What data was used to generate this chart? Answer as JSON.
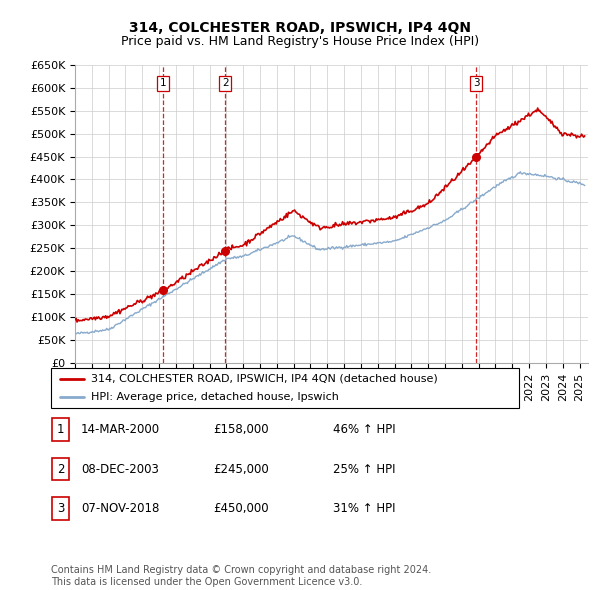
{
  "title": "314, COLCHESTER ROAD, IPSWICH, IP4 4QN",
  "subtitle": "Price paid vs. HM Land Registry's House Price Index (HPI)",
  "ylim": [
    0,
    650000
  ],
  "yticks": [
    0,
    50000,
    100000,
    150000,
    200000,
    250000,
    300000,
    350000,
    400000,
    450000,
    500000,
    550000,
    600000,
    650000
  ],
  "ytick_labels": [
    "£0",
    "£50K",
    "£100K",
    "£150K",
    "£200K",
    "£250K",
    "£300K",
    "£350K",
    "£400K",
    "£450K",
    "£500K",
    "£550K",
    "£600K",
    "£650K"
  ],
  "xlim_start": 1995.0,
  "xlim_end": 2025.5,
  "sale_dates": [
    2000.21,
    2003.93,
    2018.85
  ],
  "sale_prices": [
    158000,
    245000,
    450000
  ],
  "sale_labels": [
    "1",
    "2",
    "3"
  ],
  "red_line_color": "#cc0000",
  "blue_line_color": "#88aacc",
  "marker_color": "#cc0000",
  "vline_color": "#cc0000",
  "background_color": "#ffffff",
  "grid_color": "#cccccc",
  "legend_label_red": "314, COLCHESTER ROAD, IPSWICH, IP4 4QN (detached house)",
  "legend_label_blue": "HPI: Average price, detached house, Ipswich",
  "table_rows": [
    [
      "1",
      "14-MAR-2000",
      "£158,000",
      "46% ↑ HPI"
    ],
    [
      "2",
      "08-DEC-2003",
      "£245,000",
      "25% ↑ HPI"
    ],
    [
      "3",
      "07-NOV-2018",
      "£450,000",
      "31% ↑ HPI"
    ]
  ],
  "footnote": "Contains HM Land Registry data © Crown copyright and database right 2024.\nThis data is licensed under the Open Government Licence v3.0.",
  "title_fontsize": 10,
  "subtitle_fontsize": 9,
  "tick_fontsize": 8,
  "legend_fontsize": 8,
  "table_fontsize": 8.5,
  "footnote_fontsize": 7
}
